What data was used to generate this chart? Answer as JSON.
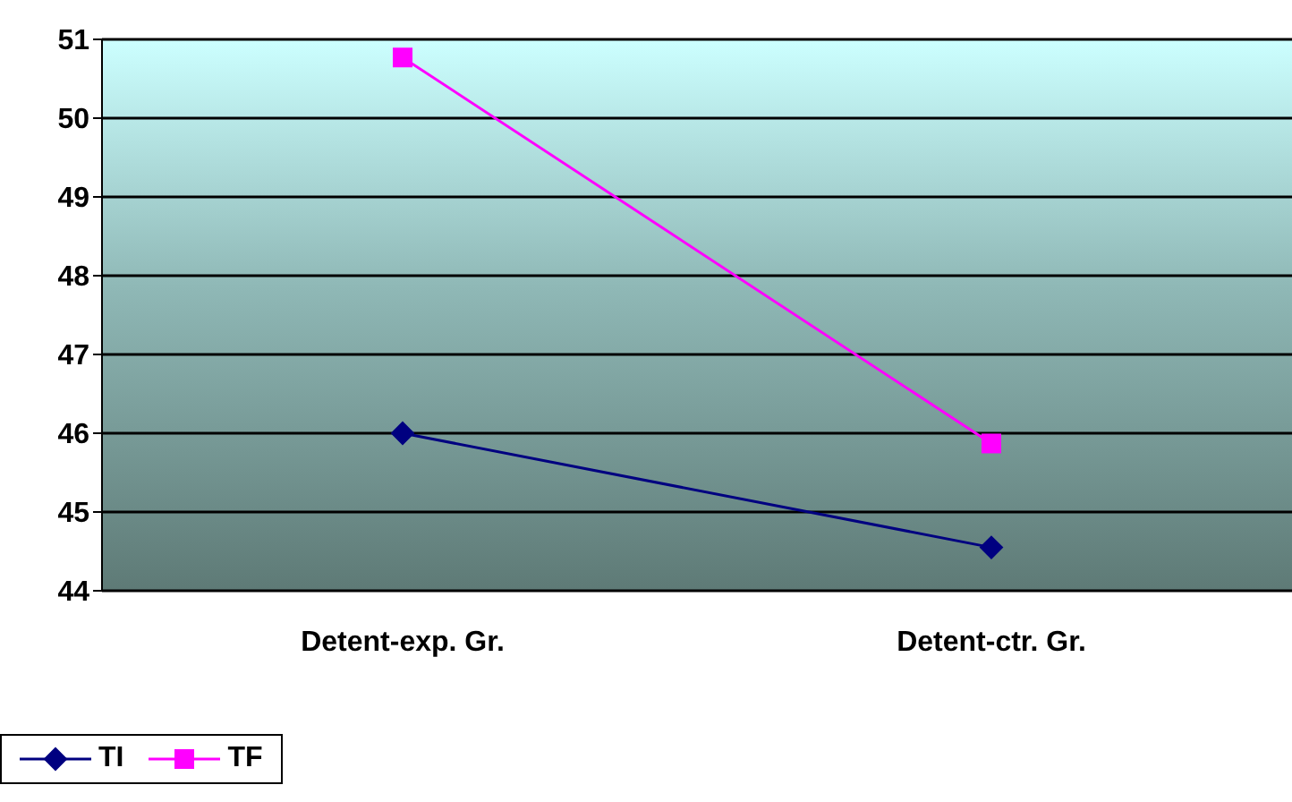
{
  "chart_data": {
    "type": "line",
    "categories": [
      "Detent-exp. Gr.",
      "Detent-ctr. Gr."
    ],
    "series": [
      {
        "name": "TI",
        "color": "#000080",
        "values": [
          46.0,
          44.55
        ],
        "marker": "diamond"
      },
      {
        "name": "TF",
        "color": "#ff00ff",
        "values": [
          50.77,
          45.87
        ],
        "marker": "square"
      }
    ],
    "ylim": [
      44,
      51
    ],
    "yticks": [
      44,
      45,
      46,
      47,
      48,
      49,
      50,
      51
    ],
    "grid": "y",
    "legend": "bottom"
  }
}
